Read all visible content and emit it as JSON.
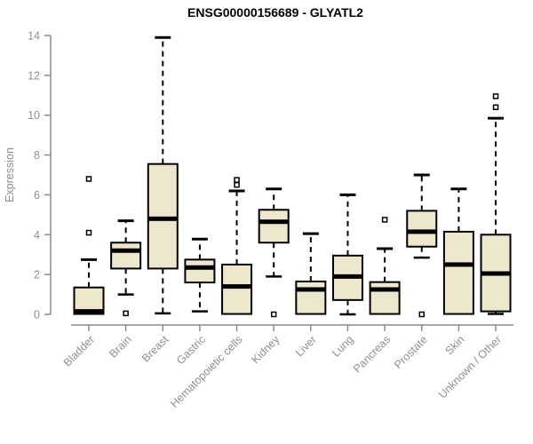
{
  "title": "ENSG00000156689 - GLYATL2",
  "colors": {
    "box_fill": "#ede7cd",
    "box_border": "#000000",
    "median": "#000000",
    "whisker": "#000000",
    "outlier_fill": "#ffffff",
    "axis": "#8a8a8a",
    "tick_label": "#8f8f8f",
    "title": "#000000",
    "background": "#ffffff"
  },
  "chart_data": {
    "type": "boxplot",
    "title": "ENSG00000156689 - GLYATL2",
    "xlabel": "",
    "ylabel": "Expression",
    "ylim": [
      0,
      14
    ],
    "yticks": [
      0,
      2,
      4,
      6,
      8,
      10,
      12,
      14
    ],
    "grid": false,
    "legend": false,
    "categories": [
      "Bladder",
      "Brain",
      "Breast",
      "Gastric",
      "Hematopoietic cells",
      "Kidney",
      "Liver",
      "Lung",
      "Pancreas",
      "Prostate",
      "Skin",
      "Unknown / Other"
    ],
    "boxes": [
      {
        "category": "Bladder",
        "low": 0.02,
        "q1": 0.02,
        "median": 0.15,
        "q3": 1.35,
        "high": 2.75,
        "outliers": [
          4.1,
          6.8
        ]
      },
      {
        "category": "Brain",
        "low": 1.0,
        "q1": 2.3,
        "median": 3.2,
        "q3": 3.6,
        "high": 4.7,
        "outliers": [
          0.05
        ]
      },
      {
        "category": "Breast",
        "low": 0.05,
        "q1": 2.3,
        "median": 4.8,
        "q3": 7.55,
        "high": 13.9,
        "outliers": []
      },
      {
        "category": "Gastric",
        "low": 0.15,
        "q1": 1.6,
        "median": 2.35,
        "q3": 2.75,
        "high": 3.78,
        "outliers": []
      },
      {
        "category": "Hematopoietic cells",
        "low": 0.02,
        "q1": 0.02,
        "median": 1.4,
        "q3": 2.5,
        "high": 6.2,
        "outliers": [
          6.5,
          6.75
        ]
      },
      {
        "category": "Kidney",
        "low": 1.9,
        "q1": 3.6,
        "median": 4.65,
        "q3": 5.25,
        "high": 6.3,
        "outliers": [
          0.0
        ]
      },
      {
        "category": "Liver",
        "low": 0.02,
        "q1": 0.02,
        "median": 1.25,
        "q3": 1.65,
        "high": 4.05,
        "outliers": []
      },
      {
        "category": "Lung",
        "low": 0.0,
        "q1": 0.72,
        "median": 1.9,
        "q3": 2.95,
        "high": 6.0,
        "outliers": []
      },
      {
        "category": "Pancreas",
        "low": 0.02,
        "q1": 0.02,
        "median": 1.25,
        "q3": 1.62,
        "high": 3.3,
        "outliers": [
          4.75
        ]
      },
      {
        "category": "Prostate",
        "low": 2.85,
        "q1": 3.4,
        "median": 4.15,
        "q3": 5.2,
        "high": 7.0,
        "outliers": [
          0.0
        ]
      },
      {
        "category": "Skin",
        "low": 0.02,
        "q1": 0.02,
        "median": 2.5,
        "q3": 4.15,
        "high": 6.3,
        "outliers": []
      },
      {
        "category": "Unknown / Other",
        "low": 0.02,
        "q1": 0.15,
        "median": 2.05,
        "q3": 4.0,
        "high": 9.85,
        "outliers": [
          10.4,
          10.95
        ]
      }
    ]
  }
}
